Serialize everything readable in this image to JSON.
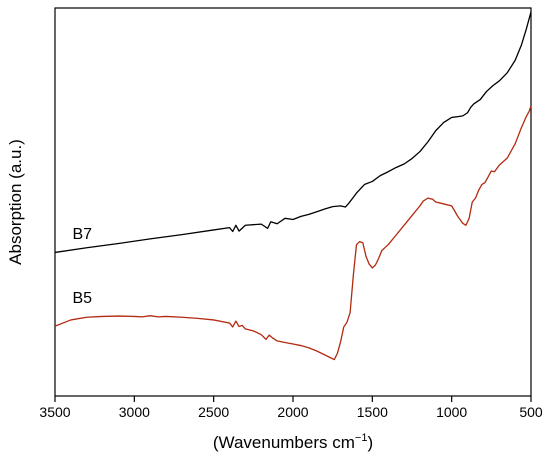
{
  "chart_data": {
    "type": "line",
    "title": "",
    "xlabel": "(Wavenumbers cm",
    "xlabel_sup": "−1",
    "xlabel_close": ")",
    "ylabel": "Absorption (a.u.)",
    "xlim": [
      3500,
      500
    ],
    "x_reversed": true,
    "y_ticks_shown": false,
    "ylim": [
      0,
      1
    ],
    "grid": false,
    "legend": "none",
    "x_ticks": [
      3500,
      3000,
      2500,
      2000,
      1500,
      1000,
      500
    ],
    "x_tick_labels": [
      "3500",
      "3000",
      "2500",
      "2000",
      "1500",
      "1000",
      "500"
    ],
    "series": [
      {
        "name": "B7",
        "color": "#000000",
        "x": [
          3500,
          3300,
          3100,
          2900,
          2700,
          2500,
          2400,
          2380,
          2360,
          2340,
          2300,
          2200,
          2160,
          2140,
          2100,
          2050,
          2000,
          1950,
          1900,
          1850,
          1800,
          1750,
          1700,
          1670,
          1650,
          1620,
          1600,
          1550,
          1500,
          1450,
          1400,
          1350,
          1300,
          1250,
          1200,
          1150,
          1100,
          1050,
          1000,
          960,
          930,
          900,
          880,
          860,
          820,
          780,
          740,
          700,
          650,
          600,
          560,
          530,
          510,
          500
        ],
        "y": [
          0.37,
          0.382,
          0.393,
          0.405,
          0.416,
          0.428,
          0.434,
          0.424,
          0.44,
          0.425,
          0.44,
          0.443,
          0.432,
          0.449,
          0.444,
          0.458,
          0.455,
          0.463,
          0.468,
          0.475,
          0.482,
          0.488,
          0.49,
          0.487,
          0.496,
          0.512,
          0.523,
          0.545,
          0.553,
          0.568,
          0.578,
          0.589,
          0.598,
          0.612,
          0.63,
          0.655,
          0.684,
          0.705,
          0.718,
          0.72,
          0.722,
          0.73,
          0.744,
          0.753,
          0.764,
          0.785,
          0.8,
          0.812,
          0.833,
          0.865,
          0.905,
          0.945,
          0.975,
          0.99
        ]
      },
      {
        "name": "B5",
        "color": "#b22a10",
        "x": [
          3500,
          3450,
          3400,
          3300,
          3200,
          3100,
          3000,
          2950,
          2900,
          2850,
          2800,
          2700,
          2600,
          2500,
          2450,
          2400,
          2380,
          2360,
          2340,
          2320,
          2300,
          2250,
          2200,
          2170,
          2150,
          2130,
          2100,
          2050,
          2000,
          1950,
          1900,
          1850,
          1800,
          1760,
          1740,
          1720,
          1700,
          1680,
          1660,
          1640,
          1620,
          1600,
          1580,
          1560,
          1540,
          1520,
          1500,
          1480,
          1460,
          1440,
          1400,
          1350,
          1300,
          1250,
          1200,
          1180,
          1150,
          1120,
          1100,
          1050,
          1000,
          960,
          930,
          910,
          890,
          870,
          850,
          830,
          810,
          790,
          770,
          750,
          730,
          700,
          650,
          600,
          560,
          530,
          510,
          500
        ],
        "y": [
          0.18,
          0.188,
          0.196,
          0.203,
          0.205,
          0.206,
          0.205,
          0.204,
          0.207,
          0.204,
          0.205,
          0.203,
          0.2,
          0.196,
          0.192,
          0.188,
          0.178,
          0.193,
          0.179,
          0.182,
          0.173,
          0.168,
          0.158,
          0.146,
          0.157,
          0.15,
          0.142,
          0.138,
          0.134,
          0.13,
          0.124,
          0.116,
          0.106,
          0.098,
          0.094,
          0.11,
          0.14,
          0.178,
          0.19,
          0.215,
          0.31,
          0.39,
          0.398,
          0.395,
          0.36,
          0.34,
          0.33,
          0.338,
          0.355,
          0.375,
          0.39,
          0.415,
          0.44,
          0.465,
          0.49,
          0.502,
          0.51,
          0.507,
          0.5,
          0.495,
          0.49,
          0.462,
          0.445,
          0.44,
          0.458,
          0.5,
          0.51,
          0.53,
          0.545,
          0.55,
          0.565,
          0.58,
          0.578,
          0.595,
          0.613,
          0.65,
          0.692,
          0.72,
          0.735,
          0.748
        ]
      }
    ],
    "annotations": [
      {
        "text": "B7",
        "x": 3390,
        "y": 0.405
      },
      {
        "text": "B5",
        "x": 3390,
        "y": 0.24
      }
    ]
  }
}
